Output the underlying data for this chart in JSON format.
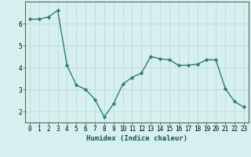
{
  "x": [
    0,
    1,
    2,
    3,
    4,
    5,
    6,
    7,
    8,
    9,
    10,
    11,
    12,
    13,
    14,
    15,
    16,
    17,
    18,
    19,
    20,
    21,
    22,
    23
  ],
  "y": [
    6.2,
    6.2,
    6.3,
    6.6,
    4.1,
    3.2,
    3.0,
    2.55,
    1.75,
    2.35,
    3.25,
    3.55,
    3.75,
    4.5,
    4.4,
    4.35,
    4.1,
    4.1,
    4.15,
    4.35,
    4.35,
    3.05,
    2.45,
    2.2
  ],
  "line_color": "#2e7d6e",
  "marker": "D",
  "marker_size": 2.2,
  "bg_color": "#d6f0f0",
  "grid_color": "#c0d8d8",
  "xlabel": "Humidex (Indice chaleur)",
  "xlim": [
    -0.5,
    23.5
  ],
  "ylim": [
    1.5,
    7.0
  ],
  "yticks": [
    2,
    3,
    4,
    5,
    6
  ],
  "xticks": [
    0,
    1,
    2,
    3,
    4,
    5,
    6,
    7,
    8,
    9,
    10,
    11,
    12,
    13,
    14,
    15,
    16,
    17,
    18,
    19,
    20,
    21,
    22,
    23
  ],
  "xtick_labels": [
    "0",
    "1",
    "2",
    "3",
    "4",
    "5",
    "6",
    "7",
    "8",
    "9",
    "10",
    "11",
    "12",
    "13",
    "14",
    "15",
    "16",
    "17",
    "18",
    "19",
    "20",
    "21",
    "22",
    "23"
  ],
  "label_fontsize": 6.5,
  "tick_fontsize": 5.5,
  "spine_color": "#606060",
  "tick_color": "#2e7d6e"
}
